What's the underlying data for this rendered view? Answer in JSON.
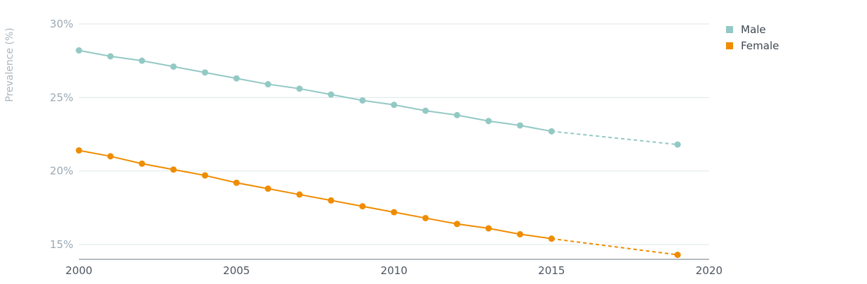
{
  "chart_data": {
    "type": "line",
    "ylabel": "Prevalence (%)",
    "xlabel": "",
    "ylim": [
      14,
      30
    ],
    "xlim": [
      2000,
      2020
    ],
    "y_ticks": [
      15,
      20,
      25,
      30
    ],
    "y_tick_labels": [
      "15%",
      "20%",
      "25%",
      "30%"
    ],
    "x_ticks": [
      2000,
      2005,
      2010,
      2015,
      2020
    ],
    "x_tick_labels": [
      "2000",
      "2005",
      "2010",
      "2015",
      "2020"
    ],
    "grid": true,
    "legend_position": "top-right",
    "series": [
      {
        "name": "Male",
        "color": "#93c9c5",
        "x": [
          2000,
          2001,
          2002,
          2003,
          2004,
          2005,
          2006,
          2007,
          2008,
          2009,
          2010,
          2011,
          2012,
          2013,
          2014,
          2015,
          2019
        ],
        "values": [
          28.2,
          27.8,
          27.5,
          27.1,
          26.7,
          26.3,
          25.9,
          25.6,
          25.2,
          24.8,
          24.5,
          24.1,
          23.8,
          23.4,
          23.1,
          22.7,
          21.8
        ],
        "projected_from_x": 2015
      },
      {
        "name": "Female",
        "color": "#ef8c00",
        "x": [
          2000,
          2001,
          2002,
          2003,
          2004,
          2005,
          2006,
          2007,
          2008,
          2009,
          2010,
          2011,
          2012,
          2013,
          2014,
          2015,
          2019
        ],
        "values": [
          21.4,
          21.0,
          20.5,
          20.1,
          19.7,
          19.2,
          18.8,
          18.4,
          18.0,
          17.6,
          17.2,
          16.8,
          16.4,
          16.1,
          15.7,
          15.4,
          14.3
        ],
        "projected_from_x": 2015
      }
    ]
  }
}
